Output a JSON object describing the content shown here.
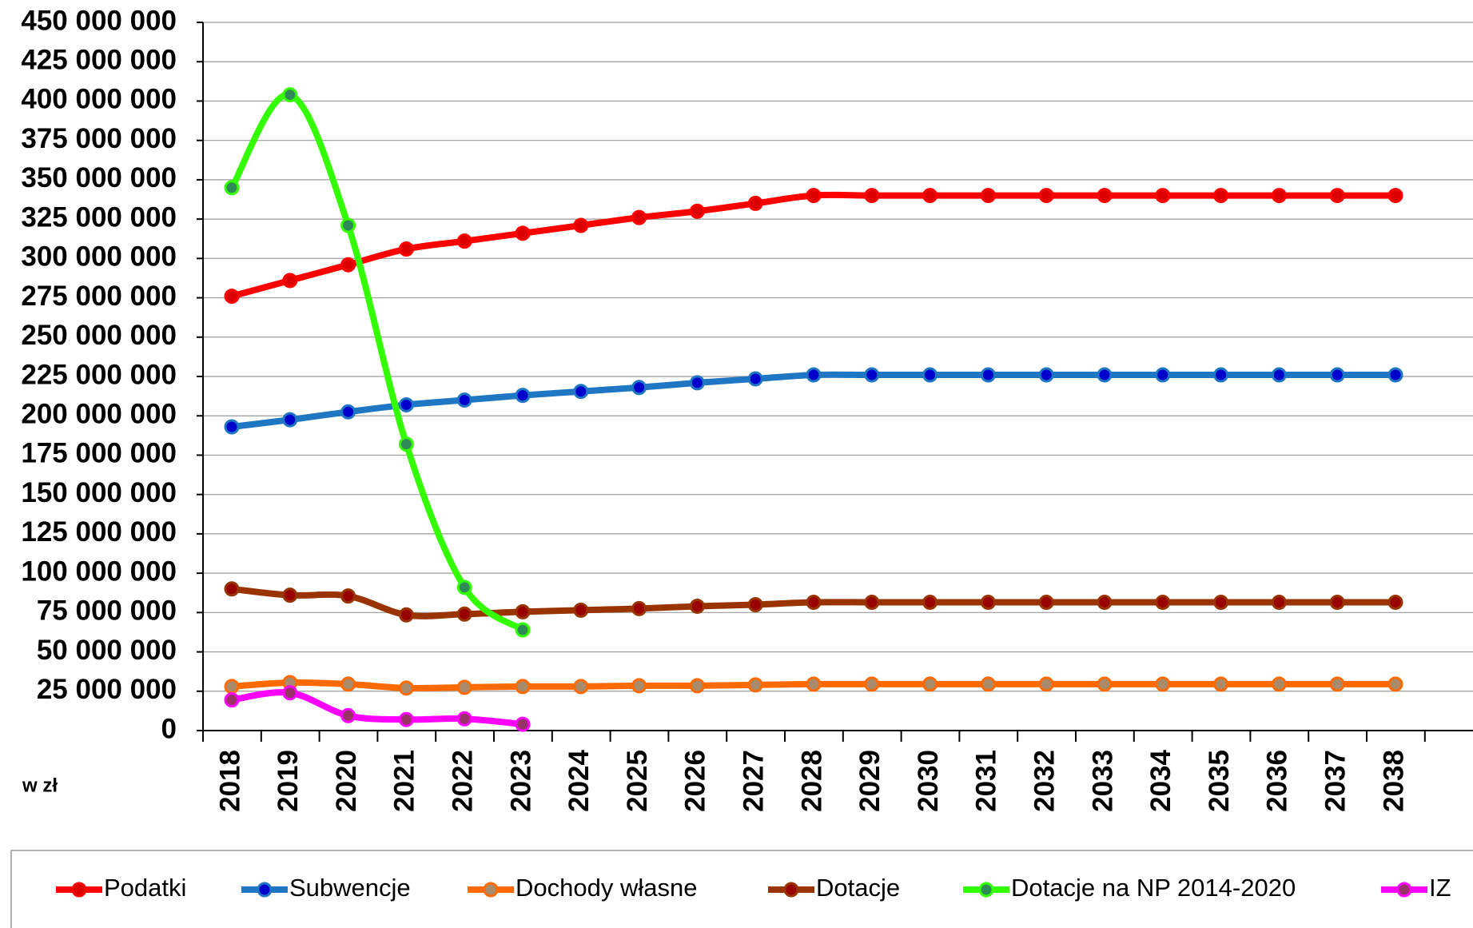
{
  "chart_data": {
    "type": "line",
    "y_unit_label": "w zł",
    "categories": [
      "2018",
      "2019",
      "2020",
      "2021",
      "2022",
      "2023",
      "2024",
      "2025",
      "2026",
      "2027",
      "2028",
      "2029",
      "2030",
      "2031",
      "2032",
      "2033",
      "2034",
      "2035",
      "2036",
      "2037",
      "2038"
    ],
    "series": [
      {
        "name": "Podatki",
        "color": "#ff0000",
        "marker_color": "#dd0000",
        "values": [
          276000000,
          286000000,
          296000000,
          306000000,
          311000000,
          316000000,
          321000000,
          326000000,
          330000000,
          335000000,
          340000000,
          340000000,
          340000000,
          340000000,
          340000000,
          340000000,
          340000000,
          340000000,
          340000000,
          340000000,
          340000000
        ]
      },
      {
        "name": "Subwencje",
        "color": "#1f77c4",
        "marker_color": "#0000cc",
        "values": [
          193000000,
          197500000,
          202500000,
          207000000,
          210000000,
          213000000,
          215500000,
          218000000,
          221000000,
          223500000,
          226000000,
          226000000,
          226000000,
          226000000,
          226000000,
          226000000,
          226000000,
          226000000,
          226000000,
          226000000,
          226000000
        ]
      },
      {
        "name": "Dochody własne",
        "color": "#ff6a00",
        "marker_color": "#a98a6a",
        "values": [
          28000000,
          30500000,
          29500000,
          27000000,
          27500000,
          28000000,
          28000000,
          28500000,
          28500000,
          29000000,
          29500000,
          29500000,
          29500000,
          29500000,
          29500000,
          29500000,
          29500000,
          29500000,
          29500000,
          29500000,
          29500000
        ]
      },
      {
        "name": "Dotacje",
        "color": "#993300",
        "marker_color": "#990000",
        "values": [
          90000000,
          86000000,
          85500000,
          73500000,
          74000000,
          75500000,
          76500000,
          77500000,
          79000000,
          80000000,
          81500000,
          81500000,
          81500000,
          81500000,
          81500000,
          81500000,
          81500000,
          81500000,
          81500000,
          81500000,
          81500000
        ]
      },
      {
        "name": "Dotacje na NP 2014-2020",
        "color": "#33ff00",
        "marker_color": "#2e8b57",
        "values": [
          345000000,
          404000000,
          321000000,
          182000000,
          91000000,
          64000000,
          null,
          null,
          null,
          null,
          null,
          null,
          null,
          null,
          null,
          null,
          null,
          null,
          null,
          null,
          null
        ]
      },
      {
        "name": "IZ",
        "color": "#ff00ff",
        "marker_color": "#993366",
        "values": [
          19500000,
          24000000,
          9500000,
          7000000,
          7500000,
          4000000,
          null,
          null,
          null,
          null,
          null,
          null,
          null,
          null,
          null,
          null,
          null,
          null,
          null,
          null,
          null
        ]
      }
    ],
    "ylim": [
      0,
      450000000
    ],
    "yticks": [
      {
        "value": 0,
        "label": "0"
      },
      {
        "value": 25000000,
        "label": "25 000 000"
      },
      {
        "value": 50000000,
        "label": "50 000 000"
      },
      {
        "value": 75000000,
        "label": "75 000 000"
      },
      {
        "value": 100000000,
        "label": "100 000 000"
      },
      {
        "value": 125000000,
        "label": "125 000 000"
      },
      {
        "value": 150000000,
        "label": "150 000 000"
      },
      {
        "value": 175000000,
        "label": "175 000 000"
      },
      {
        "value": 200000000,
        "label": "200 000 000"
      },
      {
        "value": 225000000,
        "label": "225 000 000"
      },
      {
        "value": 250000000,
        "label": "250 000 000"
      },
      {
        "value": 275000000,
        "label": "275 000 000"
      },
      {
        "value": 300000000,
        "label": "300 000 000"
      },
      {
        "value": 325000000,
        "label": "325 000 000"
      },
      {
        "value": 350000000,
        "label": "350 000 000"
      },
      {
        "value": 375000000,
        "label": "375 000 000"
      },
      {
        "value": 400000000,
        "label": "400 000 000"
      },
      {
        "value": 425000000,
        "label": "425 000 000"
      },
      {
        "value": 450000000,
        "label": "450 000 000"
      }
    ],
    "grid": true,
    "legend": "bottom"
  }
}
